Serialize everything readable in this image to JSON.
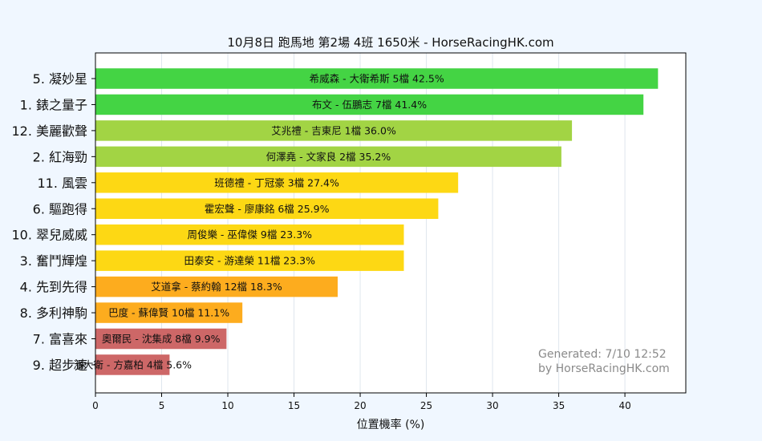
{
  "chart_data": {
    "type": "bar",
    "orientation": "horizontal",
    "title": "10月8日  跑馬地  第2場  4班  1650米 - HorseRacingHK.com",
    "xlabel": "位置機率 (%)",
    "ylabel": "",
    "xlim": [
      0,
      44.6
    ],
    "xticks": [
      0,
      5,
      10,
      15,
      20,
      25,
      30,
      35,
      40
    ],
    "grid": true,
    "categories": [
      "5. 凝妙星",
      "1. 錶之量子",
      "12. 美麗歡聲",
      "2. 紅海勁",
      "11. 風雲",
      "6. 驅跑得",
      "10. 翠兒威威",
      "3. 奮鬥輝煌",
      "4. 先到先得",
      "8. 多利神駒",
      "7. 富喜來",
      "9. 超步速"
    ],
    "values": [
      42.5,
      41.4,
      36.0,
      35.2,
      27.4,
      25.9,
      23.3,
      23.3,
      18.3,
      11.1,
      9.9,
      5.6
    ],
    "bar_labels": [
      "希威森 - 大衛希斯 5檔  42.5%",
      "布文 - 伍鵬志 7檔  41.4%",
      "艾兆禮 - 吉東尼 1檔  36.0%",
      "何澤堯 - 文家良 2檔  35.2%",
      "班德禮 - 丁冠豪 3檔  27.4%",
      "霍宏聲 - 廖康銘 6檔  25.9%",
      "周俊樂 - 巫偉傑 9檔  23.3%",
      "田泰安 - 游達榮 11檔  23.3%",
      "艾道拿 - 蔡約翰 12檔  18.3%",
      "巴度 - 蘇偉賢 10檔  11.1%",
      "奧爾民 - 沈集成 8檔  9.9%",
      "潘大衛 - 方嘉柏 4檔  5.6%"
    ],
    "colors": [
      "#44d444",
      "#44d444",
      "#a2d444",
      "#a2d444",
      "#fdd814",
      "#fdd814",
      "#fdd814",
      "#fdd814",
      "#fdac1e",
      "#fdac1e",
      "#cd6767",
      "#cd6767"
    ],
    "watermark": [
      "Generated: 7/10 12:52",
      "by HorseRacingHK.com"
    ]
  }
}
